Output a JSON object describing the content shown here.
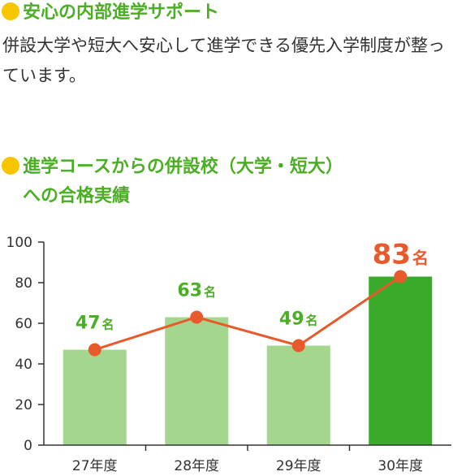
{
  "section1": {
    "title": "安心の内部進学サポート",
    "body": "併設大学や短大へ安心して進学できる優先入学制度が整っています。"
  },
  "section2": {
    "title_line1": "進学コースからの併設校（大学・短大）",
    "title_line2": "への合格実績"
  },
  "colors": {
    "heading": "#4cae24",
    "bullet": "#f7c600",
    "bar": "#a5d68d",
    "bar_highlight": "#3aaa2a",
    "line": "#e85a2c"
  },
  "chart_data": {
    "type": "bar",
    "categories": [
      "27年度",
      "28年度",
      "29年度",
      "30年度"
    ],
    "values": [
      47,
      63,
      49,
      83
    ],
    "line_values": [
      47,
      63,
      49,
      83
    ],
    "labels": [
      {
        "num": "47",
        "unit": "名"
      },
      {
        "num": "63",
        "unit": "名"
      },
      {
        "num": "49",
        "unit": "名"
      },
      {
        "num": "83",
        "unit": "名"
      }
    ],
    "highlight_index": 3,
    "yticks": [
      "0",
      "20",
      "40",
      "60",
      "80",
      "100"
    ],
    "ylim": [
      0,
      100
    ],
    "grid": false,
    "legend": "none"
  }
}
